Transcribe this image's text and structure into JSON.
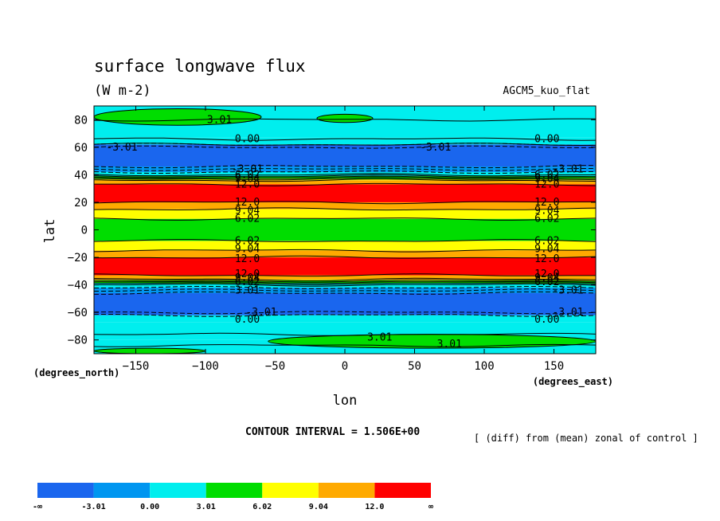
{
  "chart_data": {
    "type": "heatmap",
    "title": "surface longwave flux",
    "units": "(W m-2)",
    "run_label": "AGCM5_kuo_flat",
    "xlabel": "lon",
    "ylabel": "lat",
    "x_units": "(degrees_east)",
    "y_units": "(degrees_north)",
    "xlim": [
      -180,
      180
    ],
    "ylim": [
      -90,
      90
    ],
    "x_ticks": [
      -150,
      -100,
      -50,
      0,
      50,
      100,
      150
    ],
    "y_ticks": [
      -80,
      -60,
      -40,
      -20,
      0,
      20,
      40,
      60,
      80
    ],
    "contour_interval_label": "CONTOUR INTERVAL = 1.506E+00",
    "note": "[ (diff) from (mean) zonal of control ]",
    "colorbar": {
      "colors": [
        "#1a66ee",
        "#0096f0",
        "#00eeee",
        "#00dd00",
        "#ffff00",
        "#ffaa00",
        "#ff0000"
      ],
      "labels": [
        "-∞",
        "-3.01",
        "0.00",
        "3.01",
        "6.02",
        "9.04",
        "12.0",
        "∞"
      ]
    },
    "bands": [
      {
        "lat": [
          -90,
          -80
        ],
        "level": 2
      },
      {
        "lat": [
          -80,
          -67
        ],
        "level": 2
      },
      {
        "lat": [
          -67,
          -62
        ],
        "level": 2
      },
      {
        "lat": [
          -62,
          -46
        ],
        "level": 0
      },
      {
        "lat": [
          -46,
          -42
        ],
        "level": 1
      },
      {
        "lat": [
          -42,
          -39
        ],
        "level": 2
      },
      {
        "lat": [
          -39,
          -37
        ],
        "level": 3
      },
      {
        "lat": [
          -37,
          -36
        ],
        "level": 4
      },
      {
        "lat": [
          -36,
          -33
        ],
        "level": 5
      },
      {
        "lat": [
          -33,
          -20
        ],
        "level": 6
      },
      {
        "lat": [
          -20,
          -15
        ],
        "level": 5
      },
      {
        "lat": [
          -15,
          -8
        ],
        "level": 4
      },
      {
        "lat": [
          -8,
          8
        ],
        "level": 3
      },
      {
        "lat": [
          8,
          15
        ],
        "level": 4
      },
      {
        "lat": [
          15,
          20
        ],
        "level": 5
      },
      {
        "lat": [
          20,
          33
        ],
        "level": 6
      },
      {
        "lat": [
          33,
          36
        ],
        "level": 5
      },
      {
        "lat": [
          36,
          37
        ],
        "level": 4
      },
      {
        "lat": [
          37,
          39
        ],
        "level": 3
      },
      {
        "lat": [
          39,
          42
        ],
        "level": 2
      },
      {
        "lat": [
          42,
          46
        ],
        "level": 1
      },
      {
        "lat": [
          46,
          62
        ],
        "level": 0
      },
      {
        "lat": [
          62,
          67
        ],
        "level": 2
      },
      {
        "lat": [
          67,
          90
        ],
        "level": 2
      }
    ],
    "blobs": [
      {
        "lon": [
          -180,
          -60
        ],
        "lat": [
          76,
          88
        ],
        "level": 3
      },
      {
        "lon": [
          -20,
          20
        ],
        "lat": [
          78,
          84
        ],
        "level": 3
      },
      {
        "lon": [
          -55,
          180
        ],
        "lat": [
          -86,
          -76
        ],
        "level": 3
      },
      {
        "lon": [
          -180,
          -100
        ],
        "lat": [
          -90,
          -86
        ],
        "level": 3
      }
    ],
    "contours_solid": [
      -84,
      -76,
      62,
      66,
      80,
      -20,
      20,
      -15,
      15,
      -8,
      8,
      -36,
      36,
      -37,
      37,
      -38,
      38,
      -39,
      39,
      -40,
      40,
      -33,
      33
    ],
    "contours_dashed": [
      -62,
      -60,
      -46,
      -44,
      -42,
      46,
      44,
      42,
      60,
      62
    ],
    "contour_labels": [
      {
        "text": "3.01",
        "lon": -90,
        "lat": 80
      },
      {
        "text": "0.00",
        "lon": -70,
        "lat": 66
      },
      {
        "text": "0.00",
        "lon": 145,
        "lat": 66
      },
      {
        "text": "-3.01",
        "lon": -160,
        "lat": 60
      },
      {
        "text": "-3.01",
        "lon": 65,
        "lat": 60
      },
      {
        "text": "-3.01",
        "lon": -70,
        "lat": 44
      },
      {
        "text": "-3.01",
        "lon": 160,
        "lat": 44
      },
      {
        "text": "6.02",
        "lon": -70,
        "lat": 40
      },
      {
        "text": "6.02",
        "lon": 145,
        "lat": 40
      },
      {
        "text": "9.04",
        "lon": -70,
        "lat": 37
      },
      {
        "text": "9.04",
        "lon": 145,
        "lat": 37
      },
      {
        "text": "12.0",
        "lon": -70,
        "lat": 33
      },
      {
        "text": "12.0",
        "lon": 145,
        "lat": 33
      },
      {
        "text": "12.0",
        "lon": -70,
        "lat": 20
      },
      {
        "text": "12.0",
        "lon": 145,
        "lat": 20
      },
      {
        "text": "9.04",
        "lon": -70,
        "lat": 14
      },
      {
        "text": "9.04",
        "lon": 145,
        "lat": 14
      },
      {
        "text": "6.02",
        "lon": -70,
        "lat": 8
      },
      {
        "text": "6.02",
        "lon": 145,
        "lat": 8
      },
      {
        "text": "6.02",
        "lon": -70,
        "lat": -8
      },
      {
        "text": "6.02",
        "lon": 145,
        "lat": -8
      },
      {
        "text": "9.04",
        "lon": -70,
        "lat": -14
      },
      {
        "text": "9.04",
        "lon": 145,
        "lat": -14
      },
      {
        "text": "12.0",
        "lon": -70,
        "lat": -21
      },
      {
        "text": "12.0",
        "lon": 145,
        "lat": -21
      },
      {
        "text": "12.0",
        "lon": -70,
        "lat": -32
      },
      {
        "text": "12.0",
        "lon": 145,
        "lat": -32
      },
      {
        "text": "9.04",
        "lon": -70,
        "lat": -35
      },
      {
        "text": "9.04",
        "lon": 145,
        "lat": -35
      },
      {
        "text": "6.02",
        "lon": -70,
        "lat": -38
      },
      {
        "text": "6.02",
        "lon": 145,
        "lat": -38
      },
      {
        "text": "3.01",
        "lon": -70,
        "lat": -44
      },
      {
        "text": "-3.01",
        "lon": 160,
        "lat": -44
      },
      {
        "text": "-3.01",
        "lon": -60,
        "lat": -60
      },
      {
        "text": "-3.01",
        "lon": 160,
        "lat": -60
      },
      {
        "text": "0.00",
        "lon": -70,
        "lat": -65
      },
      {
        "text": "0.00",
        "lon": 145,
        "lat": -65
      },
      {
        "text": "3.01",
        "lon": 25,
        "lat": -78
      },
      {
        "text": "3.01",
        "lon": 75,
        "lat": -83
      }
    ]
  }
}
